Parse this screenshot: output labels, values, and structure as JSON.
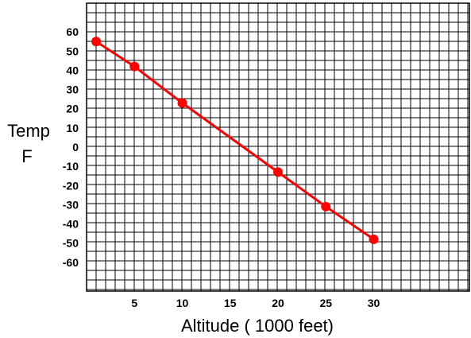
{
  "chart_data": {
    "type": "line",
    "xlabel": "Altitude ( 1000 feet)",
    "ylabel_lines": [
      "Temp",
      "F"
    ],
    "xlim": [
      0,
      40
    ],
    "ylim": [
      -75,
      75
    ],
    "x_ticks": [
      5,
      10,
      15,
      20,
      25,
      30
    ],
    "y_ticks": [
      60,
      50,
      40,
      30,
      20,
      10,
      0,
      -10,
      -20,
      -30,
      -40,
      -50,
      -60
    ],
    "grid": true,
    "series": [
      {
        "color": "#ff0000",
        "points": [
          {
            "x": 1,
            "y": 55
          },
          {
            "x": 5,
            "y": 42
          },
          {
            "x": 10,
            "y": 23
          },
          {
            "x": 20,
            "y": -13
          },
          {
            "x": 25,
            "y": -31
          },
          {
            "x": 30,
            "y": -48
          }
        ]
      }
    ]
  }
}
